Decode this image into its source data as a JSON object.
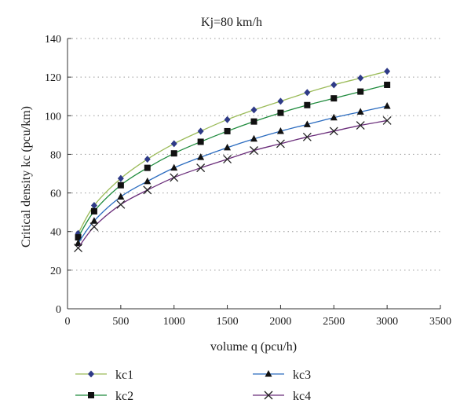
{
  "chart_data": {
    "type": "line",
    "title": "Kj=80 km/h",
    "xlabel": "volume q (pcu/h)",
    "ylabel": "Critical density kc (pcu/km)",
    "xlim": [
      0,
      3500
    ],
    "ylim": [
      0,
      140
    ],
    "x_ticks": [
      0,
      500,
      1000,
      1500,
      2000,
      2500,
      3000,
      3500
    ],
    "y_ticks": [
      0,
      20,
      40,
      60,
      80,
      100,
      120,
      140
    ],
    "grid": "dotted-horizontal",
    "legend_position": "bottom",
    "x": [
      100,
      250,
      500,
      750,
      1000,
      1250,
      1500,
      1750,
      2000,
      2250,
      2500,
      2750,
      3000
    ],
    "series": [
      {
        "name": "kc1",
        "color": "#9bbb59",
        "marker": "diamond",
        "marker_color": "#2e3a87",
        "values": [
          39,
          53.5,
          67.5,
          77.5,
          85.5,
          92,
          98,
          103,
          107.5,
          112,
          116,
          119.5,
          123
        ]
      },
      {
        "name": "kc2",
        "color": "#1e8a3c",
        "marker": "square",
        "marker_color": "#111111",
        "values": [
          37,
          50.5,
          64,
          73,
          80.5,
          86.5,
          92,
          97,
          101.5,
          105.5,
          109,
          112.5,
          116
        ]
      },
      {
        "name": "kc3",
        "color": "#2a6bbf",
        "marker": "triangle",
        "marker_color": "#111111",
        "values": [
          34,
          45.5,
          58,
          66,
          73,
          78.5,
          83.5,
          88,
          92,
          95.5,
          99,
          102,
          105
        ]
      },
      {
        "name": "kc4",
        "color": "#6a2d7a",
        "marker": "cross",
        "marker_color": "#222222",
        "values": [
          31.5,
          42.5,
          54,
          61.5,
          68,
          73,
          77.5,
          82,
          85.5,
          89,
          92,
          95,
          97.5
        ]
      }
    ]
  }
}
